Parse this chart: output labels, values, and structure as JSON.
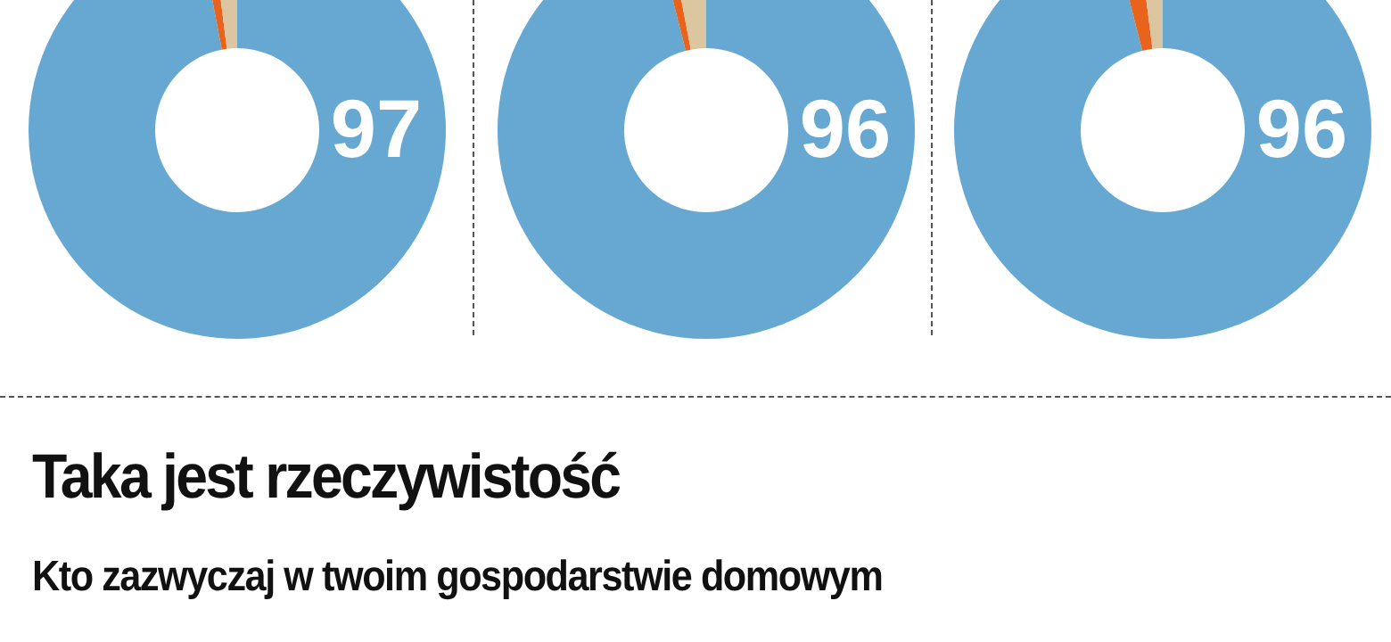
{
  "chart_data": [
    {
      "type": "donut",
      "categories": [
        null,
        null,
        null
      ],
      "values": [
        97,
        1,
        2
      ],
      "colors": [
        "#67a8d3",
        "#e8631c",
        "#dcc6a0"
      ],
      "value_labels": [
        "97",
        null,
        null
      ]
    },
    {
      "type": "donut",
      "categories": [
        null,
        null,
        null
      ],
      "values": [
        96,
        1,
        3
      ],
      "colors": [
        "#67a8d3",
        "#e8631c",
        "#dcc6a0"
      ],
      "value_labels": [
        "96",
        null,
        null
      ]
    },
    {
      "type": "donut",
      "categories": [
        null,
        null,
        null
      ],
      "values": [
        96,
        2,
        2
      ],
      "colors": [
        "#67a8d3",
        "#e8631c",
        "#dcc6a0"
      ],
      "value_labels": [
        "96",
        null,
        null
      ]
    },
    {
      "type": "other",
      "title": "Taka jest rzeczywistość",
      "subtitle": "Kto zazwyczaj w twoim gospodarstwie domowym"
    }
  ]
}
